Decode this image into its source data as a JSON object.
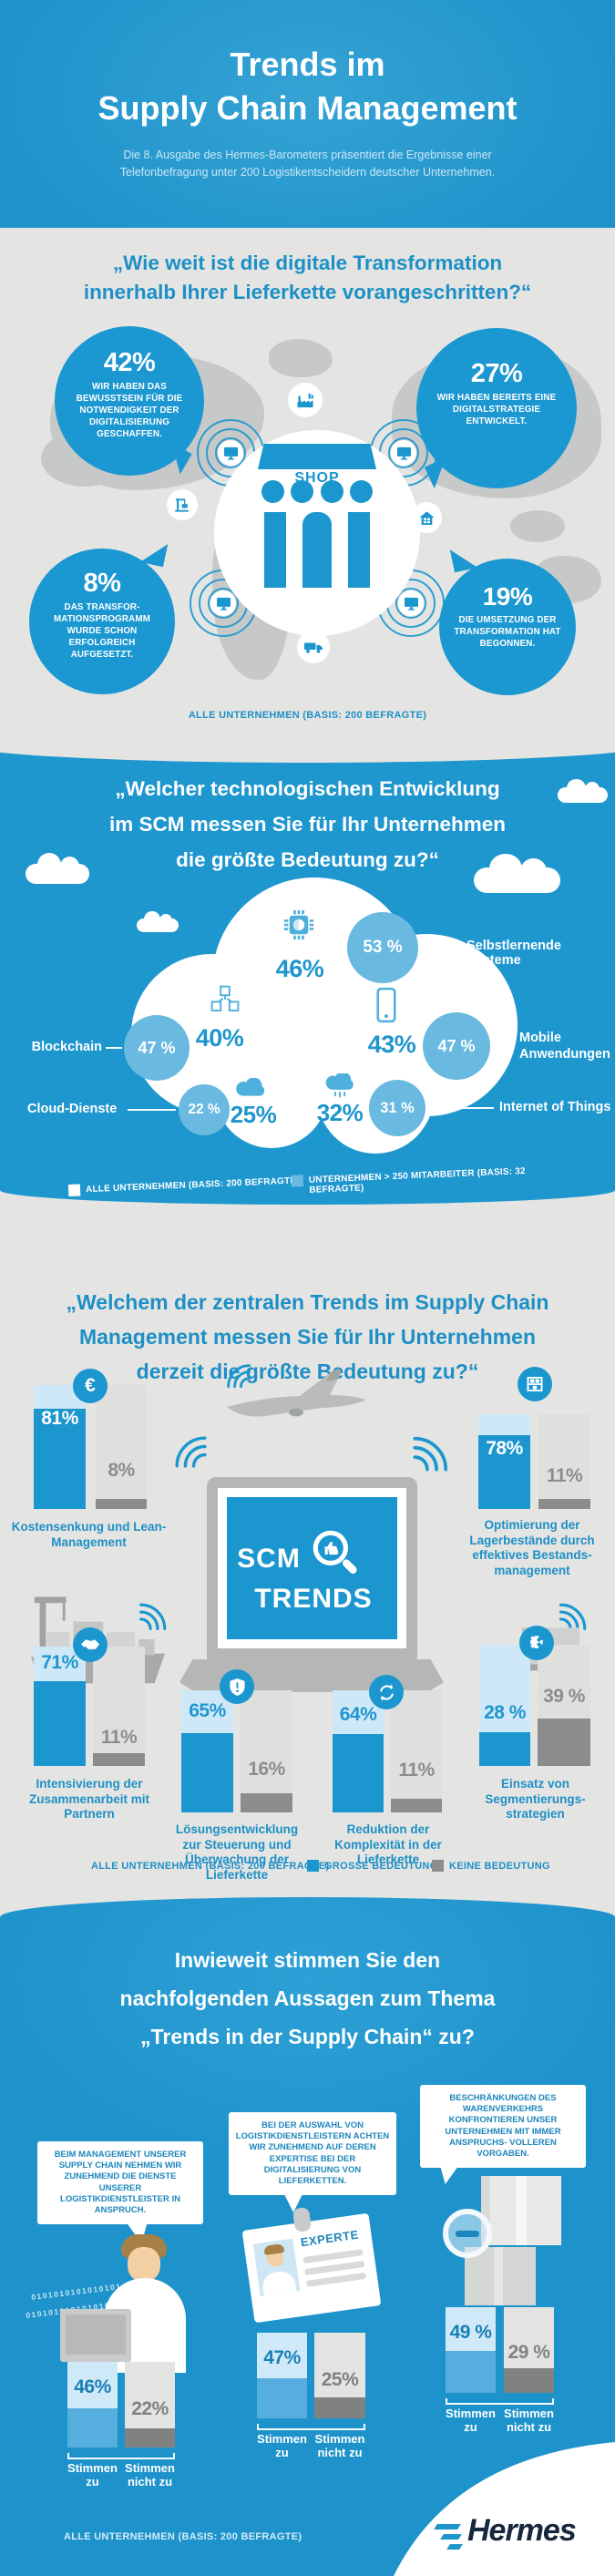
{
  "colors": {
    "brand_blue": "#1E96CE",
    "bubble_blue": "#1B97D1",
    "light_blue": "#69B9E0",
    "pale_blue": "#CFE8F7",
    "title_blue": "#1E8FC6",
    "bg_gray": "#E4E5E3",
    "map_gray": "#C7C9C8",
    "dark_gray": "#8B8D8C",
    "white": "#FFFFFF"
  },
  "header": {
    "title_line1": "Trends im",
    "title_line2": "Supply Chain Management",
    "subtitle_line1": "Die 8. Ausgabe des Hermes-Barometers präsentiert die Ergebnisse einer",
    "subtitle_line2": "Telefonbefragung unter 200 Logistikentscheidern deutscher Unternehmen."
  },
  "section1": {
    "title_line1": "„Wie weit ist die digitale Transformation",
    "title_line2": "innerhalb Ihrer Lieferkette vorangeschritten?“",
    "shop_label": "SHOP",
    "basis": "ALLE UNTERNEHMEN (BASIS: 200 BEFRAGTE)",
    "bubbles": [
      {
        "value": "42%",
        "text": "WIR HABEN DAS BEWUSSTSEIN FÜR DIE NOTWENDIGKEIT DER DIGITALISIERUNG GESCHAFFEN."
      },
      {
        "value": "27%",
        "text": "WIR HABEN BEREITS EINE DIGITALSTRATEGIE ENTWICKELT."
      },
      {
        "value": "8%",
        "text": "DAS TRANSFOR- MATIONSPROGRAMM WURDE SCHON ERFOLGREICH AUFGESETZT."
      },
      {
        "value": "19%",
        "text": "DIE UMSETZUNG DER TRANSFORMATION HAT BEGONNEN."
      }
    ]
  },
  "section2": {
    "title_line1": "„Welcher technologischen Entwicklung",
    "title_line2": "im SCM messen Sie für Ihr Unternehmen",
    "title_line3": "die größte Bedeutung zu?“",
    "items": [
      {
        "label": "Selbstlernende Systeme",
        "all_label": "46%",
        "all": 46,
        "large_label": "53 %",
        "large": 53
      },
      {
        "label": "Blockchain",
        "all_label": "40%",
        "all": 40,
        "large_label": "47 %",
        "large": 47
      },
      {
        "label": "Mobile Anwendungen",
        "all_label": "43%",
        "all": 43,
        "large_label": "47 %",
        "large": 47
      },
      {
        "label": "Cloud-Dienste",
        "all_label": "25%",
        "all": 25,
        "large_label": "22 %",
        "large": 22
      },
      {
        "label": "Internet of Things",
        "all_label": "32%",
        "all": 32,
        "large_label": "31 %",
        "large": 31
      }
    ],
    "legend_all": "ALLE UNTERNEHMEN (BASIS: 200 BEFRAGTE)",
    "legend_large": "UNTERNEHMEN > 250 MITARBEITER (BASIS: 32 BEFRAGTE)"
  },
  "section3": {
    "title_line1": "„Welchem der zentralen Trends im Supply Chain",
    "title_line2": "Management messen Sie für Ihr Unternehmen",
    "title_line3": "derzeit die größte Bedeutung zu?“",
    "laptop_line1": "SCM",
    "laptop_line2": "TRENDS",
    "euro_glyph": "€",
    "groups": [
      {
        "label": "Kostensenkung und Lean-Management",
        "yes": 81,
        "yes_label": "81%",
        "no": 8,
        "no_label": "8%"
      },
      {
        "label": "Optimierung der Lagerbestände durch effektives Bestands-management",
        "yes": 78,
        "yes_label": "78%",
        "no": 11,
        "no_label": "11%"
      },
      {
        "label": "Intensivierung der Zusammenarbeit mit Partnern",
        "yes": 71,
        "yes_label": "71%",
        "no": 11,
        "no_label": "11%"
      },
      {
        "label": "Lösungsentwicklung zur Steuerung und Überwachung der Lieferkette",
        "yes": 65,
        "yes_label": "65%",
        "no": 16,
        "no_label": "16%"
      },
      {
        "label": "Reduktion der Komplexität in der Lieferkette",
        "yes": 64,
        "yes_label": "64%",
        "no": 11,
        "no_label": "11%"
      },
      {
        "label": "Einsatz von Segmentierungs-strategien",
        "yes": 28,
        "yes_label": "28 %",
        "no": 39,
        "no_label": "39 %"
      }
    ],
    "legend_basis": "ALLE UNTERNEHMEN (BASIS: 200 BEFRAGTE)",
    "legend_yes": "GROSSE BEDEUTUNG",
    "legend_no": "KEINE BEDEUTUNG"
  },
  "section4": {
    "title_line1": "Inwieweit stimmen Sie den",
    "title_line2": "nachfolgenden Aussagen zum Thema",
    "title_line3": "„Trends in der Supply Chain“ zu?",
    "statements": [
      "BEIM MANAGEMENT UNSERER SUPPLY CHAIN NEHMEN WIR ZUNEHMEND DIE DIENSTE UNSERER LOGISTIKDIENSTLEISTER IN ANSPRUCH.",
      "BEI DER AUSWAHL VON LOGISTIKDIENSTLEISTERN ACHTEN WIR ZUNEHMEND AUF DEREN EXPERTISE BEI DER DIGITALISIERUNG VON LIEFERKETTEN.",
      "BESCHRÄNKUNGEN DES WARENVERKEHRS KONFRONTIEREN UNSER UNTERNEHMEN MIT IMMER ANSPRUCHS- VOLLEREN VORGABEN."
    ],
    "badge_label": "EXPERTE",
    "binary_text": "0101010101010101",
    "agree_label": "Stimmen zu",
    "disagree_label": "Stimmen nicht zu",
    "groups": [
      {
        "yes": 46,
        "yes_label": "46%",
        "no": 22,
        "no_label": "22%"
      },
      {
        "yes": 47,
        "yes_label": "47%",
        "no": 25,
        "no_label": "25%"
      },
      {
        "yes": 49,
        "yes_label": "49 %",
        "no": 29,
        "no_label": "29 %"
      }
    ],
    "basis": "ALLE UNTERNEHMEN (BASIS: 200 BEFRAGTE)",
    "brand": "Hermes"
  },
  "icons": {
    "shop_icon": "storefront",
    "factory_icon": "factory",
    "monitor_icon": "desktop-monitor",
    "crane_icon": "harbor-crane",
    "warehouse_icon": "warehouse-house",
    "truck_icon": "delivery-truck",
    "radar_icon": "radar-signal-rings",
    "chip_icon": "ai-chip",
    "blockchain_icon": "linked-cubes",
    "smartphone_icon": "smartphone",
    "cloud_icon": "cloud",
    "iot_icon": "rain-cloud",
    "euro_icon": "euro-sign",
    "inventory_icon": "storage-shelf",
    "handshake_icon": "handshake",
    "shield_icon": "shield-exclamation",
    "sync_icon": "circular-arrows",
    "puzzle_icon": "puzzle-piece",
    "magnifier_icon": "magnifier-thumbs-up",
    "wifi_icon": "wireless-signal",
    "plane_icon": "airplane",
    "ship_icon": "container-ship",
    "worker_icon": "office-worker",
    "badge_icon": "expert-id-card",
    "parcel_icon": "parcel-boxes-minus",
    "hermes_logo": "hermes-wordmark"
  },
  "chart_data": [
    {
      "type": "bar",
      "title": "Wie weit ist die digitale Transformation innerhalb Ihrer Lieferkette vorangeschritten?",
      "categories": [
        "Wir haben das Bewusstsein für die Notwendigkeit der Digitalisierung geschaffen.",
        "Wir haben bereits eine Digitalstrategie entwickelt.",
        "Das Transformationsprogramm wurde schon erfolgreich aufgesetzt.",
        "Die Umsetzung der Transformation hat begonnen."
      ],
      "values": [
        42,
        27,
        8,
        19
      ],
      "unit": "%",
      "basis": "Alle Unternehmen (Basis: 200 Befragte)"
    },
    {
      "type": "bar",
      "title": "Welcher technologischen Entwicklung im SCM messen Sie für Ihr Unternehmen die größte Bedeutung zu?",
      "categories": [
        "Selbstlernende Systeme",
        "Blockchain",
        "Mobile Anwendungen",
        "Cloud-Dienste",
        "Internet of Things"
      ],
      "series": [
        {
          "name": "Alle Unternehmen (Basis: 200 Befragte)",
          "values": [
            46,
            40,
            43,
            25,
            32
          ]
        },
        {
          "name": "Unternehmen > 250 Mitarbeiter (Basis: 32 Befragte)",
          "values": [
            53,
            47,
            47,
            22,
            31
          ]
        }
      ],
      "unit": "%"
    },
    {
      "type": "bar",
      "title": "Welchem der zentralen Trends im Supply Chain Management messen Sie für Ihr Unternehmen derzeit die größte Bedeutung zu?",
      "categories": [
        "Kostensenkung und Lean-Management",
        "Optimierung der Lagerbestände durch effektives Bestandsmanagement",
        "Intensivierung der Zusammenarbeit mit Partnern",
        "Lösungsentwicklung zur Steuerung und Überwachung der Lieferkette",
        "Reduktion der Komplexität in der Lieferkette",
        "Einsatz von Segmentierungsstrategien"
      ],
      "series": [
        {
          "name": "Große Bedeutung",
          "values": [
            81,
            78,
            71,
            65,
            64,
            28
          ]
        },
        {
          "name": "Keine Bedeutung",
          "values": [
            8,
            11,
            11,
            16,
            11,
            39
          ]
        }
      ],
      "unit": "%",
      "basis": "Alle Unternehmen (Basis: 200 Befragte)"
    },
    {
      "type": "bar",
      "title": "Inwieweit stimmen Sie den nachfolgenden Aussagen zum Thema „Trends in der Supply Chain“ zu?",
      "categories": [
        "Beim Management unserer Supply Chain nehmen wir zunehmend die Dienste unserer Logistikdienstleister in Anspruch.",
        "Bei der Auswahl von Logistikdienstleistern achten wir zunehmend auf deren Expertise bei der Digitalisierung von Lieferketten.",
        "Beschränkungen des Warenverkehrs konfrontieren unser Unternehmen mit immer anspruchsvolleren Vorgaben."
      ],
      "series": [
        {
          "name": "Stimmen zu",
          "values": [
            46,
            47,
            49
          ]
        },
        {
          "name": "Stimmen nicht zu",
          "values": [
            22,
            25,
            29
          ]
        }
      ],
      "unit": "%",
      "basis": "Alle Unternehmen (Basis: 200 Befragte)"
    }
  ]
}
